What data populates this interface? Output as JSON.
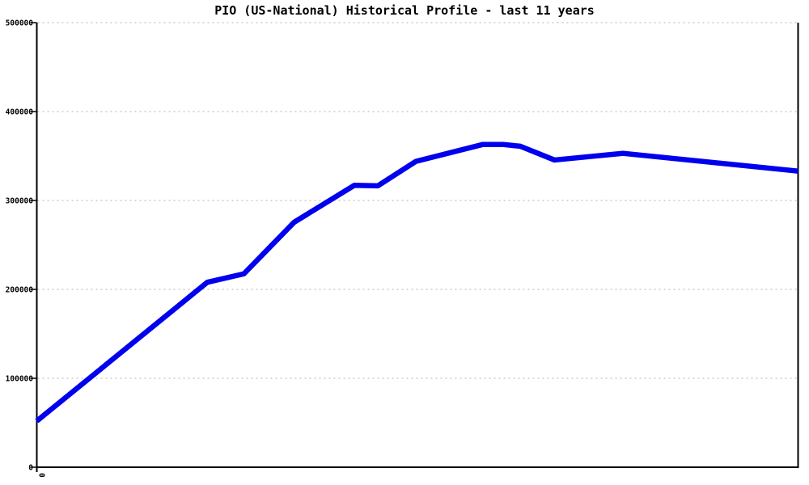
{
  "page": {
    "background": "#ffffff"
  },
  "colors": {
    "line": "#0000ee",
    "grid": "#b0b0b0",
    "axis": "#000000",
    "text": "#000000"
  },
  "chart_data": {
    "type": "line",
    "title": "PIO (US-National) Historical Profile - last 11 years",
    "xlabel": "",
    "ylabel": "",
    "grid": "horizontal dotted gridlines at each y tick",
    "legend": "none",
    "x_axis": {
      "tick_labels": [
        "0"
      ],
      "tick_label_rotation_deg": 90
    },
    "y_axis": {
      "min": 0,
      "max": 500000,
      "ticks": [
        0,
        100000,
        200000,
        300000,
        400000,
        500000
      ],
      "tick_labels": [
        "0",
        "100000",
        "200000",
        "300000",
        "400000",
        "500000"
      ]
    },
    "series": [
      {
        "color": "#0000ee",
        "points": [
          {
            "x": 0.0,
            "value": 52000
          },
          {
            "x": 0.224,
            "value": 208000
          },
          {
            "x": 0.272,
            "value": 217500
          },
          {
            "x": 0.338,
            "value": 275500
          },
          {
            "x": 0.417,
            "value": 317000
          },
          {
            "x": 0.448,
            "value": 316500
          },
          {
            "x": 0.498,
            "value": 344000
          },
          {
            "x": 0.586,
            "value": 363000
          },
          {
            "x": 0.612,
            "value": 363000
          },
          {
            "x": 0.635,
            "value": 361000
          },
          {
            "x": 0.68,
            "value": 345500
          },
          {
            "x": 0.77,
            "value": 353000
          },
          {
            "x": 1.0,
            "value": 333000
          }
        ]
      }
    ]
  }
}
